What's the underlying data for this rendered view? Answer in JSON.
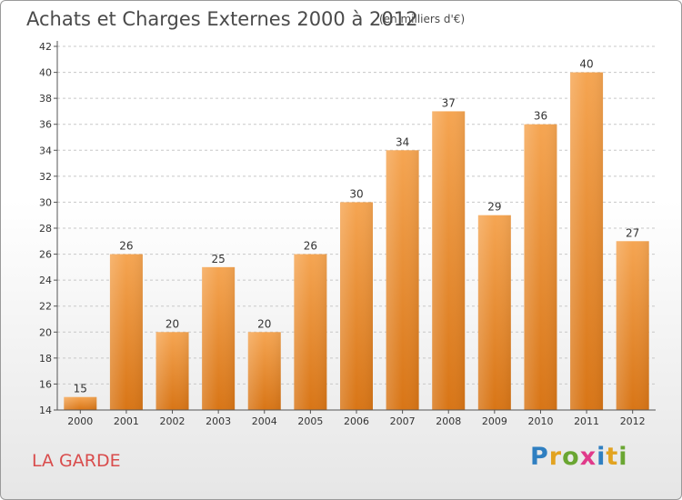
{
  "title": "Achats et Charges Externes 2000 à 2012",
  "subtitle": "(en milliers d'€)",
  "commune": "LA GARDE",
  "logo": {
    "letters": [
      {
        "ch": "P",
        "color": "#2f7fc1"
      },
      {
        "ch": "r",
        "color": "#e2a321"
      },
      {
        "ch": "o",
        "color": "#6aa632"
      },
      {
        "ch": "x",
        "color": "#e03a8a"
      },
      {
        "ch": "i",
        "color": "#2f7fc1"
      },
      {
        "ch": "t",
        "color": "#e2a321"
      },
      {
        "ch": "i",
        "color": "#6aa632"
      }
    ]
  },
  "chart_data": {
    "type": "bar",
    "title": "Achats et Charges Externes 2000 à 2012",
    "subtitle": "(en milliers d'€)",
    "categories": [
      "2000",
      "2001",
      "2002",
      "2003",
      "2004",
      "2005",
      "2006",
      "2007",
      "2008",
      "2009",
      "2010",
      "2011",
      "2012"
    ],
    "values": [
      15,
      26,
      20,
      25,
      20,
      26,
      30,
      34,
      37,
      29,
      36,
      40,
      27
    ],
    "ylim": [
      14,
      42
    ],
    "yticks": [
      14,
      16,
      18,
      20,
      22,
      24,
      26,
      28,
      30,
      32,
      34,
      36,
      38,
      40,
      42
    ],
    "grid": true,
    "bar_color": "#f39a3c"
  }
}
